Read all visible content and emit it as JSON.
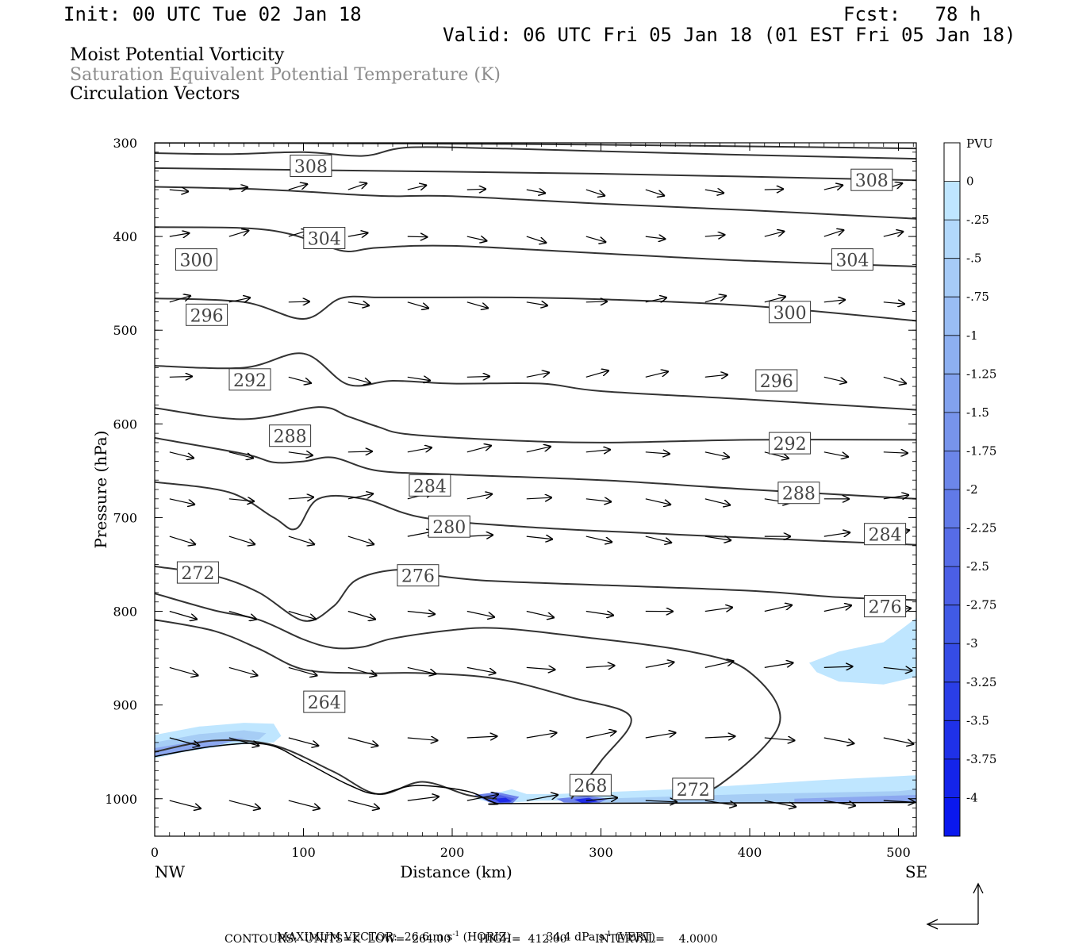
{
  "header": {
    "init": "Init: 00 UTC Tue 02 Jan 18",
    "fcst": "Fcst:   78 h",
    "valid": "Valid: 06 UTC Fri 05 Jan 18 (01 EST Fri 05 Jan 18)",
    "line1": "Moist Potential Vorticity",
    "line2": "Saturation Equivalent Potential Temperature (K)",
    "line3": "Circulation Vectors"
  },
  "footer": {
    "max_label": "MAXIMUM VECTOR:",
    "max_horiz": "26.6 m s",
    "max_horiz_exp": "-1",
    "max_horiz_tail": " (HORIZ)",
    "max_vert": "34.4 dPa s",
    "max_vert_exp": "-1",
    "max_vert_tail": " (VERT)",
    "contours": "CONTOURS:  UNITS=K  LOW=  264.00        HIGH=  412.00        INTERVAL=    4.0000"
  },
  "colors": {
    "contour": "#333333",
    "pv_fill": [
      "#bfe6ff",
      "#a6cdf5",
      "#8ca8f0",
      "#6e84ea",
      "#4e5fe6",
      "#1e2ae8"
    ]
  },
  "chart_data": {
    "type": "contour",
    "xlabel": "Distance (km)",
    "ylabel": "Pressure (hPa)",
    "xlim": [
      0,
      512
    ],
    "ylim": [
      1040,
      300
    ],
    "x_ticks": [
      0,
      100,
      200,
      300,
      400,
      500
    ],
    "y_ticks": [
      300,
      400,
      500,
      600,
      700,
      800,
      900,
      1000
    ],
    "x_end_labels": [
      "NW",
      "SE"
    ],
    "colorbar": {
      "title": "PVU",
      "levels": [
        "0",
        "-.25",
        "-.5",
        "-.75",
        "-1",
        "-1.25",
        "-1.5",
        "-1.75",
        "-2",
        "-2.25",
        "-2.5",
        "-2.75",
        "-3",
        "-3.25",
        "-3.5",
        "-3.75",
        "-4"
      ],
      "colors": [
        "#ffffff",
        "#bfe6ff",
        "#b2d8fb",
        "#a6cbf7",
        "#99bdf4",
        "#8db0f1",
        "#82a2ee",
        "#7794eb",
        "#6c86e9",
        "#617ae8",
        "#566ce7",
        "#4b5fe6",
        "#405ae6",
        "#354ce6",
        "#2a3ee7",
        "#1f31e8",
        "#1424ea",
        "#0a18ee"
      ]
    },
    "isentropes": [
      {
        "value": 308,
        "points": [
          [
            0,
            311
          ],
          [
            50,
            312
          ],
          [
            100,
            310
          ],
          [
            140,
            314
          ],
          [
            170,
            305
          ],
          [
            230,
            306
          ],
          [
            300,
            309
          ],
          [
            400,
            313
          ],
          [
            512,
            317
          ]
        ]
      },
      {
        "value": 304,
        "points": [
          [
            0,
            347
          ],
          [
            60,
            349
          ],
          [
            100,
            352
          ],
          [
            130,
            355
          ],
          [
            160,
            357
          ],
          [
            200,
            357
          ],
          [
            300,
            365
          ],
          [
            400,
            372
          ],
          [
            512,
            381
          ]
        ]
      },
      {
        "value": 300,
        "points": [
          [
            0,
            390
          ],
          [
            60,
            391
          ],
          [
            90,
            397
          ],
          [
            115,
            410
          ],
          [
            130,
            416
          ],
          [
            150,
            412
          ],
          [
            200,
            410
          ],
          [
            300,
            418
          ],
          [
            400,
            426
          ],
          [
            512,
            432
          ]
        ]
      },
      {
        "value": 296,
        "points": [
          [
            0,
            466
          ],
          [
            60,
            470
          ],
          [
            100,
            488
          ],
          [
            125,
            466
          ],
          [
            150,
            465
          ],
          [
            180,
            465
          ],
          [
            240,
            465
          ],
          [
            300,
            467
          ],
          [
            400,
            474
          ],
          [
            512,
            490
          ]
        ]
      },
      {
        "value": 292,
        "points": [
          [
            0,
            538
          ],
          [
            60,
            540
          ],
          [
            100,
            525
          ],
          [
            130,
            558
          ],
          [
            160,
            554
          ],
          [
            200,
            557
          ],
          [
            260,
            557
          ],
          [
            300,
            565
          ],
          [
            400,
            574
          ],
          [
            512,
            585
          ]
        ]
      },
      {
        "value": 288,
        "points": [
          [
            0,
            583
          ],
          [
            60,
            595
          ],
          [
            110,
            582
          ],
          [
            130,
            592
          ],
          [
            150,
            603
          ],
          [
            170,
            611
          ],
          [
            230,
            617
          ],
          [
            300,
            620
          ],
          [
            400,
            617
          ],
          [
            512,
            617
          ]
        ]
      },
      {
        "value": 284,
        "points": [
          [
            0,
            615
          ],
          [
            60,
            632
          ],
          [
            80,
            641
          ],
          [
            100,
            640
          ],
          [
            120,
            636
          ],
          [
            150,
            650
          ],
          [
            200,
            654
          ],
          [
            300,
            660
          ],
          [
            400,
            670
          ],
          [
            512,
            680
          ]
        ]
      },
      {
        "value": 280,
        "points": [
          [
            0,
            662
          ],
          [
            50,
            673
          ],
          [
            80,
            700
          ],
          [
            95,
            712
          ],
          [
            110,
            680
          ],
          [
            140,
            680
          ],
          [
            180,
            700
          ],
          [
            250,
            710
          ],
          [
            350,
            718
          ],
          [
            450,
            725
          ],
          [
            512,
            729
          ]
        ]
      },
      {
        "value": 276,
        "points": [
          [
            0,
            752
          ],
          [
            40,
            762
          ],
          [
            70,
            780
          ],
          [
            100,
            810
          ],
          [
            120,
            795
          ],
          [
            135,
            767
          ],
          [
            160,
            756
          ],
          [
            180,
            760
          ],
          [
            220,
            767
          ],
          [
            300,
            772
          ],
          [
            400,
            778
          ],
          [
            460,
            785
          ],
          [
            512,
            788
          ]
        ]
      },
      {
        "value": 272,
        "points": [
          [
            0,
            781
          ],
          [
            40,
            799
          ],
          [
            70,
            809
          ],
          [
            100,
            830
          ],
          [
            120,
            839
          ],
          [
            140,
            838
          ],
          [
            160,
            829
          ],
          [
            200,
            820
          ],
          [
            230,
            818
          ],
          [
            280,
            826
          ],
          [
            360,
            843
          ],
          [
            400,
            865
          ],
          [
            420,
            920
          ],
          [
            380,
            985
          ],
          [
            350,
            1000
          ]
        ]
      },
      {
        "value": 268,
        "points": [
          [
            0,
            809
          ],
          [
            40,
            821
          ],
          [
            70,
            840
          ],
          [
            100,
            862
          ],
          [
            140,
            866
          ],
          [
            180,
            866
          ],
          [
            230,
            872
          ],
          [
            280,
            892
          ],
          [
            320,
            913
          ],
          [
            300,
            960
          ],
          [
            280,
            1000
          ]
        ]
      },
      {
        "value": 264,
        "points": [
          [
            0,
            950
          ],
          [
            40,
            938
          ],
          [
            80,
            943
          ],
          [
            120,
            971
          ],
          [
            150,
            995
          ],
          [
            180,
            982
          ],
          [
            210,
            996
          ],
          [
            230,
            1000
          ]
        ]
      }
    ],
    "pv_regions": [
      {
        "label": "PV below -0.25 near surface",
        "x": [
          0,
          85
        ]
      },
      {
        "label": "PV patch",
        "x": [
          440,
          505
        ]
      },
      {
        "label": "PV minimum near 268 K",
        "x": [
          215,
          300
        ]
      }
    ]
  }
}
